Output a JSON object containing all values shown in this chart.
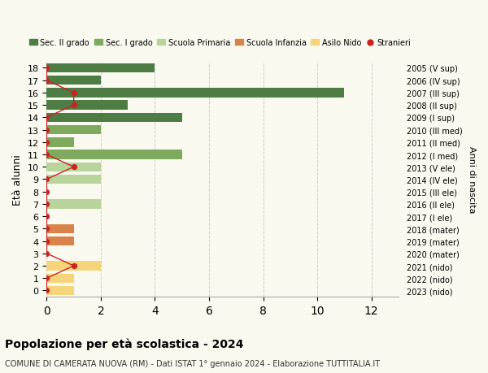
{
  "ages": [
    0,
    1,
    2,
    3,
    4,
    5,
    6,
    7,
    8,
    9,
    10,
    11,
    12,
    13,
    14,
    15,
    16,
    17,
    18
  ],
  "right_labels": [
    "2023 (nido)",
    "2022 (nido)",
    "2021 (nido)",
    "2020 (mater)",
    "2019 (mater)",
    "2018 (mater)",
    "2017 (I ele)",
    "2016 (II ele)",
    "2015 (III ele)",
    "2014 (IV ele)",
    "2013 (V ele)",
    "2012 (I med)",
    "2011 (II med)",
    "2010 (III med)",
    "2009 (I sup)",
    "2008 (II sup)",
    "2007 (III sup)",
    "2006 (IV sup)",
    "2005 (V sup)"
  ],
  "bar_values": [
    1,
    1,
    2,
    0,
    1,
    1,
    0,
    2,
    0,
    2,
    2,
    5,
    1,
    2,
    5,
    3,
    11,
    2,
    4
  ],
  "bar_colors": [
    "#f5d47a",
    "#f5d47a",
    "#f5d47a",
    "#d9824a",
    "#d9824a",
    "#d9824a",
    "#b8d49a",
    "#b8d49a",
    "#b8d49a",
    "#b8d49a",
    "#b8d49a",
    "#7faa5e",
    "#7faa5e",
    "#7faa5e",
    "#4d7c45",
    "#4d7c45",
    "#4d7c45",
    "#4d7c45",
    "#4d7c45"
  ],
  "stranieri_x": [
    0,
    0,
    1,
    0,
    0,
    0,
    0,
    0,
    0,
    0,
    1,
    0,
    0,
    0,
    0,
    1,
    1,
    0,
    0
  ],
  "legend_labels": [
    "Sec. II grado",
    "Sec. I grado",
    "Scuola Primaria",
    "Scuola Infanzia",
    "Asilo Nido",
    "Stranieri"
  ],
  "legend_colors": [
    "#4d7c45",
    "#7faa5e",
    "#b8d49a",
    "#d9824a",
    "#f5d47a",
    "#cc2222"
  ],
  "ylabel": "Età alunni",
  "right_ylabel": "Anni di nascita",
  "title": "Popolazione per età scolastica - 2024",
  "subtitle": "COMUNE DI CAMERATA NUOVA (RM) - Dati ISTAT 1° gennaio 2024 - Elaborazione TUTTITALIA.IT",
  "xlim": [
    0,
    13
  ],
  "xticks": [
    0,
    2,
    4,
    6,
    8,
    10,
    12
  ],
  "ylim": [
    -0.5,
    18.5
  ],
  "bg_color": "#f9f9f0",
  "grid_color": "#cccccc"
}
